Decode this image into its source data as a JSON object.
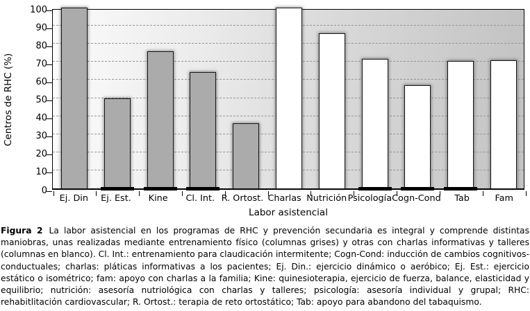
{
  "figure": {
    "caption_label": "Figura 2",
    "caption_text": "La labor asistencial en los programas de RHC y prevención secundaria es integral y comprende distintas maniobras, unas realizadas mediante entrenamiento físico (columnas grises) y otras con charlas informativas y talleres (columnas en blanco). Cl. Int.: entrenamiento para claudicación intermitente; Cogn-Cond: inducción de cambios cognitivos-conductuales; charlas: pláticas informativas a los pacientes; Ej. Din.: ejercicio dinámico o aeróbico; Ej. Est.: ejercicio estático o isométrico; fam: apoyo con charlas a la familia; Kine: quinesioterapia, ejercicio de fuerza, balance, elasticidad y equilibrio; nutrición: asesoría nutriológica con charlas y talleres; psicología: asesoría individual y grupal; RHC: rehabitlitación cardiovascular; R. Ortost.: terapia de reto ortostático; Tab: apoyo para abandono del tabaquismo."
  },
  "chart_data": {
    "type": "bar",
    "title": "",
    "xlabel": "Labor asistencial",
    "ylabel": "Centros de RHC (%)",
    "ylim": [
      0,
      100
    ],
    "ytick_step": 10,
    "grid": "horizontal-dashed",
    "legend_position": "none",
    "categories": [
      "Ej. Din",
      "Ej. Est.",
      "Kine",
      "Cl. Int.",
      "R. Ortost.",
      "Charlas",
      "Nutrición",
      "Psicología",
      "Cogn-Cond",
      "Tab",
      "Fam"
    ],
    "values": [
      100,
      50,
      76,
      64.5,
      36,
      100,
      86,
      71.5,
      57,
      70.5,
      71
    ],
    "bar_styles": [
      "gray",
      "gray",
      "gray",
      "gray",
      "gray",
      "white",
      "white",
      "white",
      "white",
      "white",
      "white"
    ],
    "base_marks": [
      false,
      true,
      true,
      true,
      false,
      false,
      false,
      true,
      true,
      true,
      false
    ],
    "colors": {
      "gray_bar": "#ababab",
      "white_bar": "#ffffff",
      "bar_border": "#141414",
      "gridline": "#969696",
      "plot_background_left": "#fbfbfb",
      "plot_background_right": "#c3c3c3",
      "axis": "#000000"
    }
  }
}
